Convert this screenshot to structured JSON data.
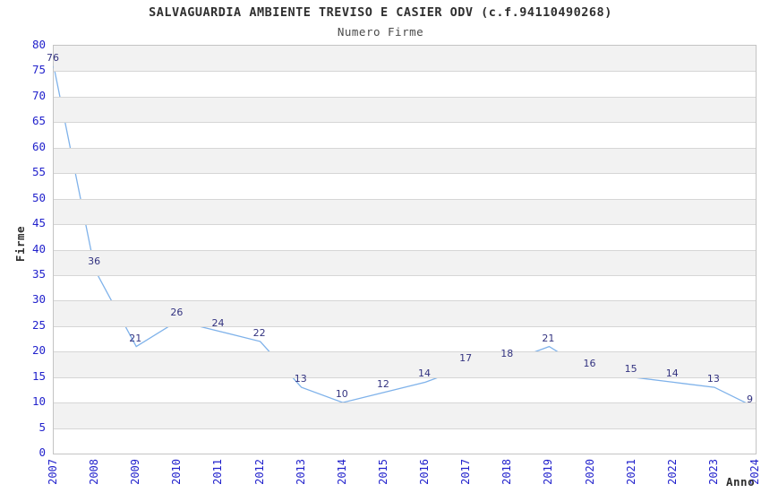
{
  "window": {
    "background": "#ffffff"
  },
  "chart_data": {
    "type": "line",
    "title": "SALVAGUARDIA AMBIENTE TREVISO E CASIER ODV (c.f.94110490268)",
    "subtitle": "Numero Firme",
    "xlabel": "Anno",
    "ylabel": "Firme",
    "categories": [
      "2007",
      "2008",
      "2009",
      "2010",
      "2011",
      "2012",
      "2013",
      "2014",
      "2015",
      "2016",
      "2017",
      "2018",
      "2019",
      "2020",
      "2021",
      "2022",
      "2023",
      "2024"
    ],
    "series": [
      {
        "name": "Numero Firme",
        "values": [
          76,
          36,
          21,
          26,
          24,
          22,
          13,
          10,
          12,
          14,
          17,
          18,
          21,
          16,
          15,
          14,
          13,
          9
        ]
      }
    ],
    "ylim": [
      0,
      80
    ],
    "ytick_step": 5,
    "grid": true,
    "legend": "none",
    "bands": "alternating-horizontal",
    "data_labels": true,
    "colors": {
      "line": "#7fb2ea",
      "tick_label": "#2222cc",
      "data_label": "#333380",
      "title": "#2f2f2f",
      "subtitle": "#4a4a4a",
      "axis_title": "#2f2f2f",
      "band": "#f2f2f2",
      "gridline": "#d6d6d6",
      "border": "#c4c4c4",
      "background": "#ffffff"
    }
  }
}
